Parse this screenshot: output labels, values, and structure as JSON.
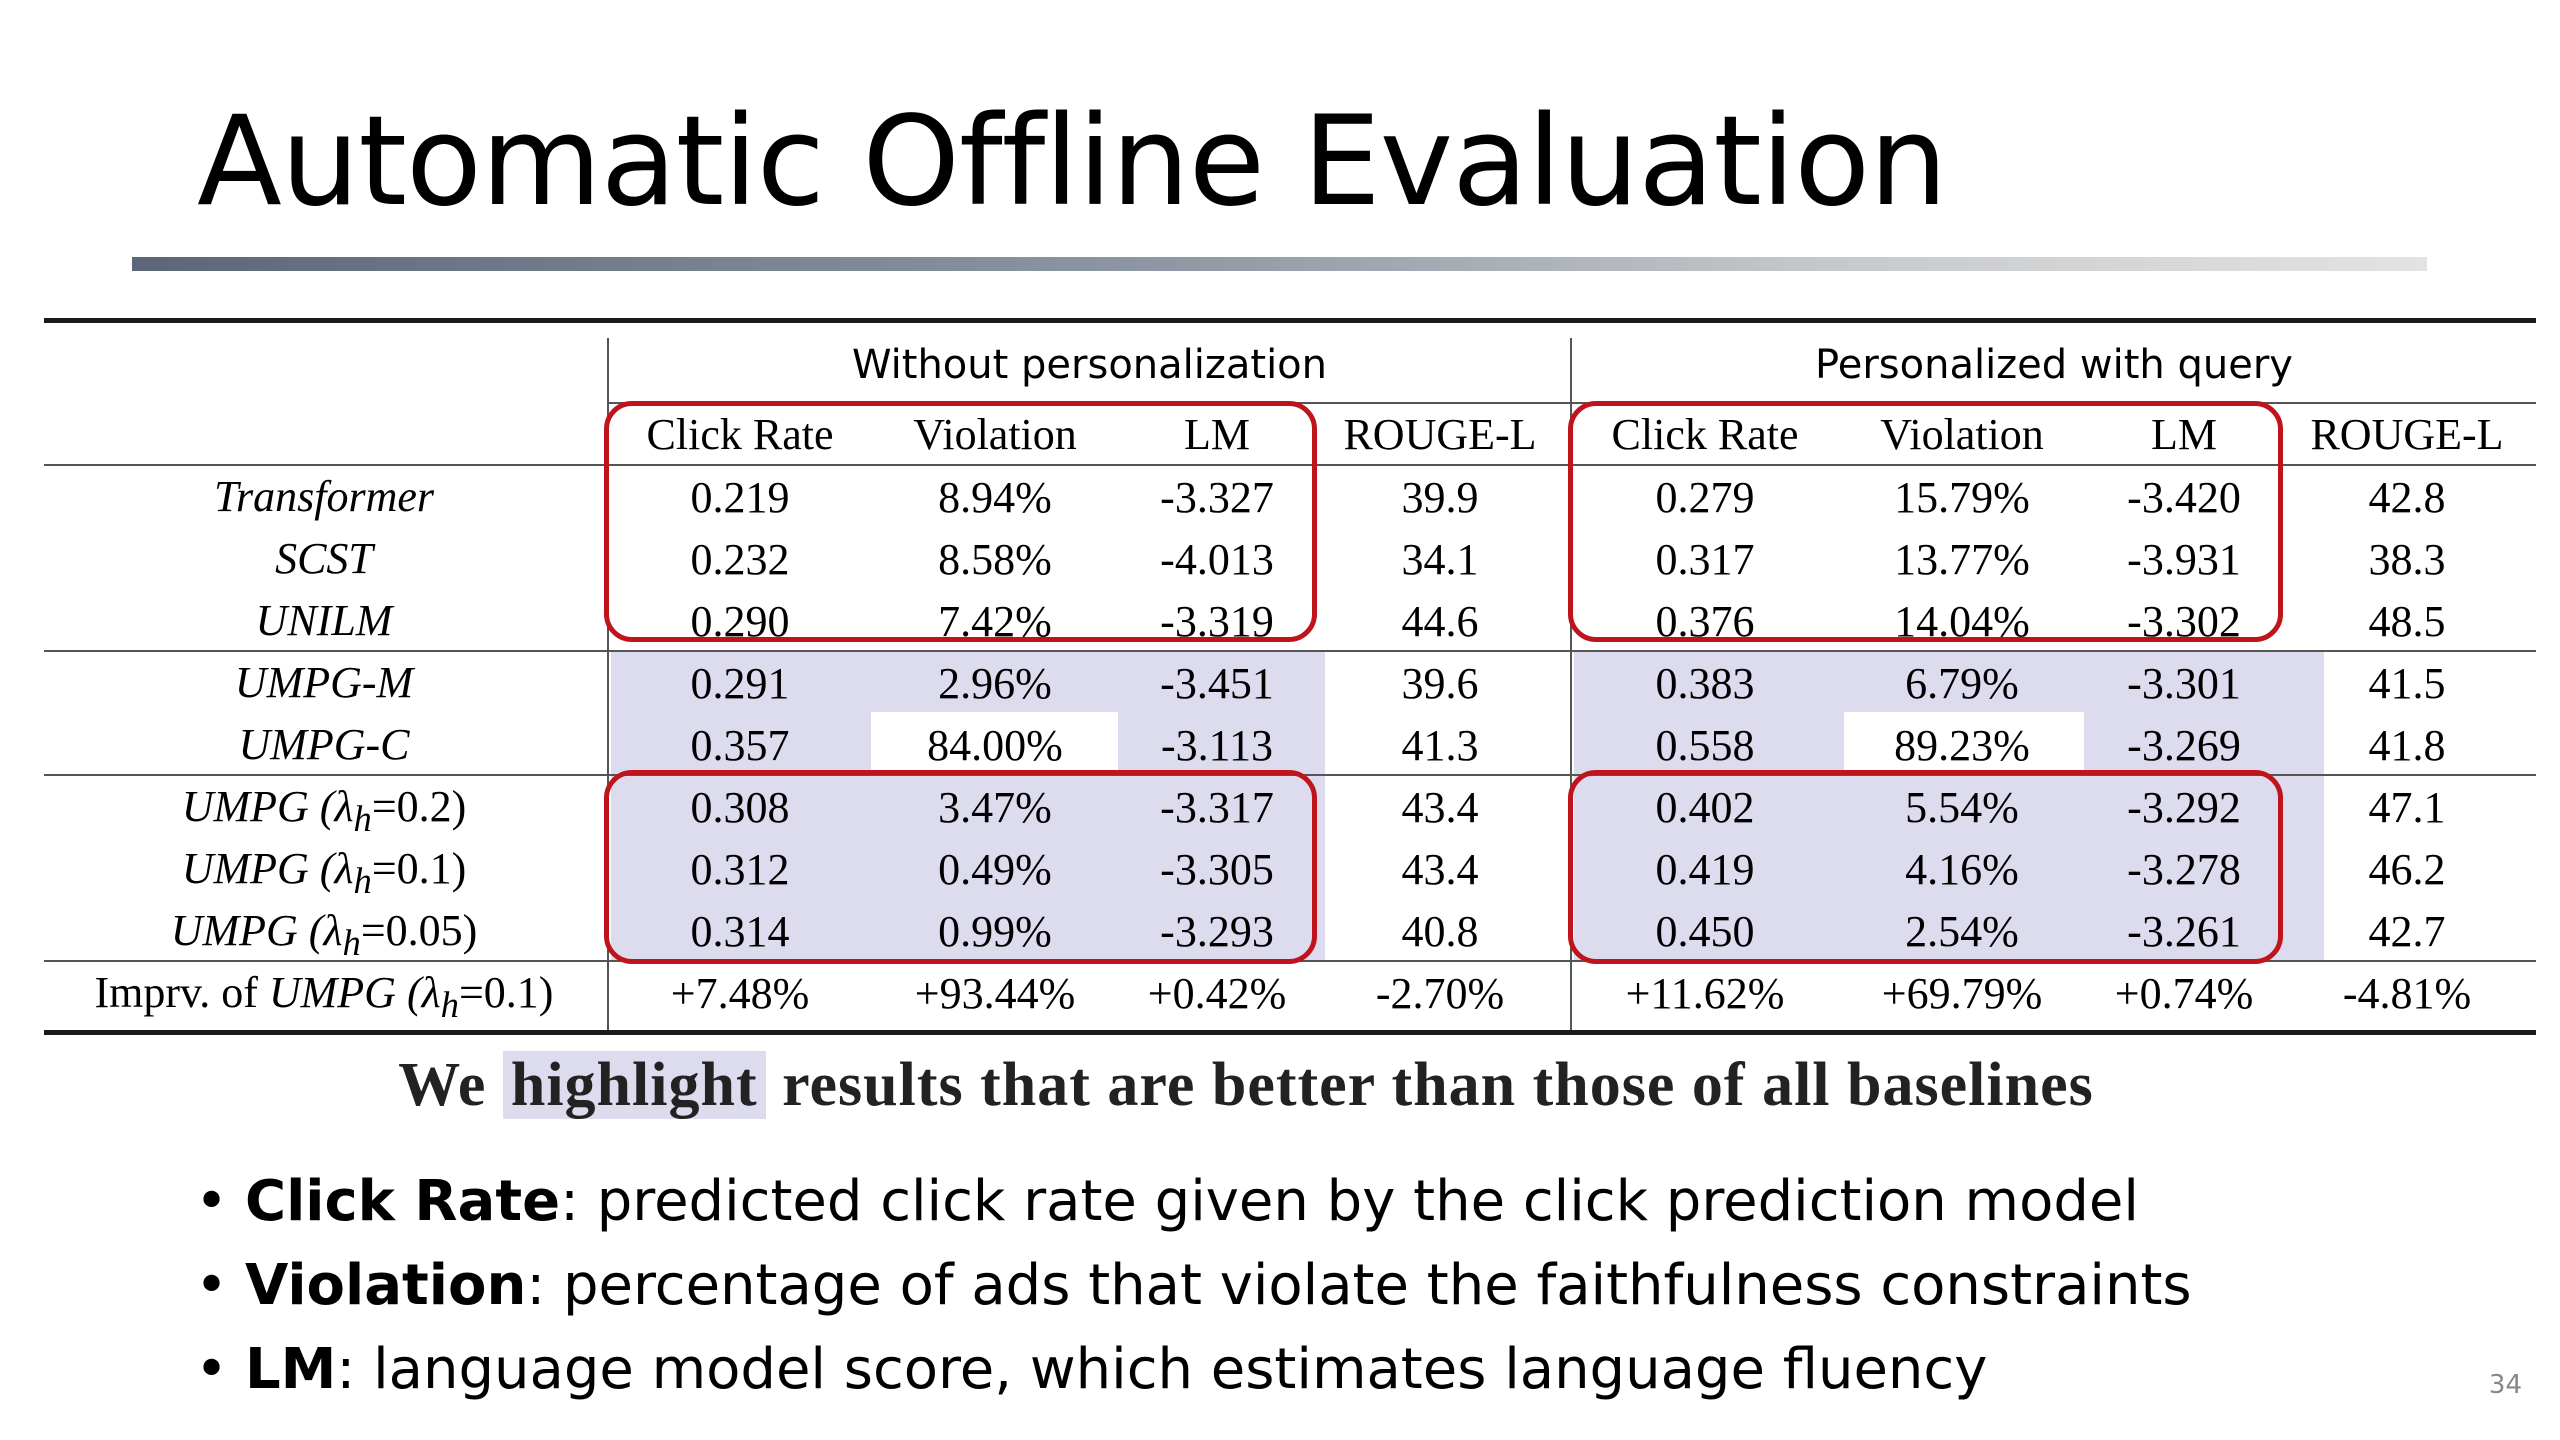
{
  "slide": {
    "title": "Automatic Offline Evaluation",
    "page_number": "34"
  },
  "table": {
    "group_headers": [
      "Without personalization",
      "Personalized with query"
    ],
    "columns": [
      "Click Rate",
      "Violation",
      "LM",
      "ROUGE-L",
      "Click Rate",
      "Violation",
      "LM",
      "ROUGE-L"
    ],
    "rows": [
      {
        "label": "Transformer",
        "values": [
          "0.219",
          "8.94%",
          "-3.327",
          "39.9",
          "0.279",
          "15.79%",
          "-3.420",
          "42.8"
        ]
      },
      {
        "label": "SCST",
        "values": [
          "0.232",
          "8.58%",
          "-4.013",
          "34.1",
          "0.317",
          "13.77%",
          "-3.931",
          "38.3"
        ]
      },
      {
        "label": "UNILM",
        "values": [
          "0.290",
          "7.42%",
          "-3.319",
          "44.6",
          "0.376",
          "14.04%",
          "-3.302",
          "48.5"
        ]
      },
      {
        "label": "UMPG-M",
        "values": [
          "0.291",
          "2.96%",
          "-3.451",
          "39.6",
          "0.383",
          "6.79%",
          "-3.301",
          "41.5"
        ]
      },
      {
        "label": "UMPG-C",
        "values": [
          "0.357",
          "84.00%",
          "-3.113",
          "41.3",
          "0.558",
          "89.23%",
          "-3.269",
          "41.8"
        ]
      },
      {
        "label_prefix": "UMPG (",
        "label_symbol": "λ",
        "label_sub": "h",
        "label_suffix": "=0.2)",
        "values": [
          "0.308",
          "3.47%",
          "-3.317",
          "43.4",
          "0.402",
          "5.54%",
          "-3.292",
          "47.1"
        ]
      },
      {
        "label_prefix": "UMPG (",
        "label_symbol": "λ",
        "label_sub": "h",
        "label_suffix": "=0.1)",
        "values": [
          "0.312",
          "0.49%",
          "-3.305",
          "43.4",
          "0.419",
          "4.16%",
          "-3.278",
          "46.2"
        ]
      },
      {
        "label_prefix": "UMPG (",
        "label_symbol": "λ",
        "label_sub": "h",
        "label_suffix": "=0.05)",
        "values": [
          "0.314",
          "0.99%",
          "-3.293",
          "40.8",
          "0.450",
          "2.54%",
          "-3.261",
          "42.7"
        ]
      },
      {
        "label_pre": "Imprv. of ",
        "label_prefix": "UMPG (",
        "label_symbol": "λ",
        "label_sub": "h",
        "label_suffix": "=0.1)",
        "values": [
          "+7.48%",
          "+93.44%",
          "+0.42%",
          "-2.70%",
          "+11.62%",
          "+69.79%",
          "+0.74%",
          "-4.81%"
        ]
      }
    ],
    "highlight_color": "#dcdcee",
    "frame_color": "#c0141c"
  },
  "caption": {
    "before": "We",
    "highlight": "highlight",
    "after": "results that are better than those of all baselines"
  },
  "bullets": [
    {
      "term": "Click Rate",
      "text": ": predicted click rate given by the click prediction model"
    },
    {
      "term": "Violation",
      "text": ": percentage of ads that violate the faithfulness constraints"
    },
    {
      "term": "LM",
      "text": ": language model score, which estimates language fluency"
    }
  ]
}
